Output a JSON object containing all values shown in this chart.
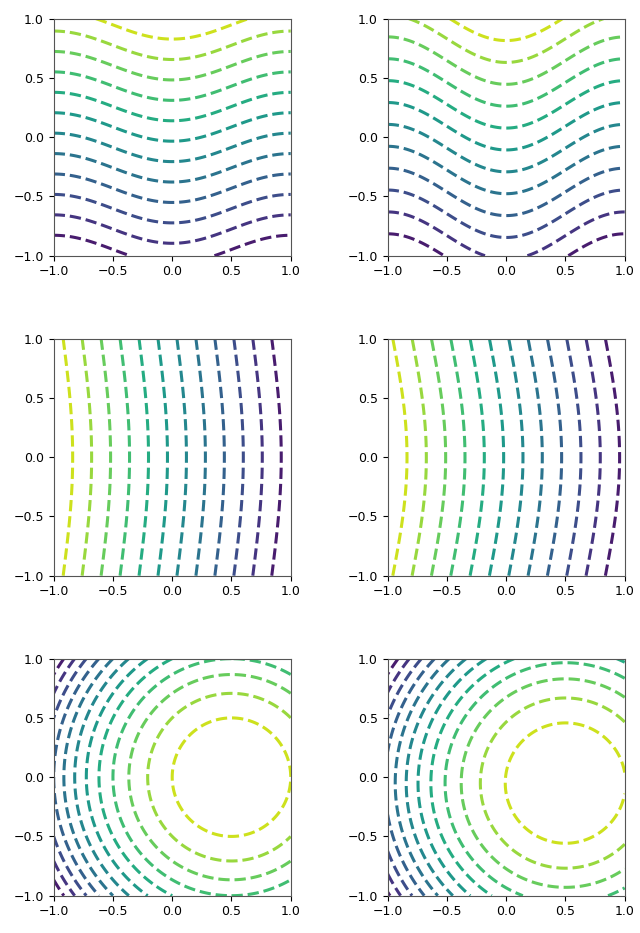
{
  "n_rows": 3,
  "n_cols": 2,
  "xlim": [
    -1,
    1
  ],
  "ylim": [
    -1,
    1
  ],
  "xticks": [
    -1,
    -0.5,
    0,
    0.5,
    1
  ],
  "yticks": [
    -1,
    -0.5,
    0,
    0.5,
    1
  ],
  "n_levels": 14,
  "linewidth": 2.2,
  "colormap": "viridis",
  "figsize": [
    6.4,
    9.33
  ],
  "dpi": 100,
  "subplot_hspace": 0.35,
  "subplot_wspace": 0.35,
  "tick_labelsize": 9
}
